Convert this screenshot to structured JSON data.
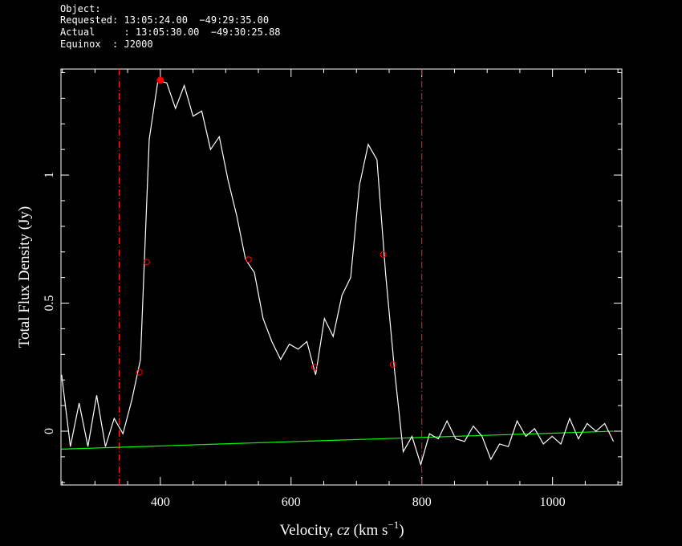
{
  "chart_data": {
    "type": "line",
    "header": [
      "Object:",
      "Requested: 13:05:24.00  −49:29:35.00",
      "Actual     : 13:05:30.00  −49:30:25.88",
      "Equinox  : J2000"
    ],
    "y_label": "Total Flux Density (Jy)",
    "x_label": [
      "Velocity, ",
      "cz",
      " (km s",
      "−1",
      ")"
    ],
    "xlim": [
      248,
      1106
    ],
    "ylim": [
      -0.21,
      1.414
    ],
    "xticks": [
      400,
      600,
      800,
      1000
    ],
    "yticks": [
      0,
      0.5,
      1
    ],
    "xminor": [
      250,
      300,
      350,
      450,
      500,
      550,
      650,
      700,
      750,
      850,
      900,
      950,
      1050,
      1100
    ],
    "yminor": [
      -0.2,
      -0.1,
      0.1,
      0.2,
      0.3,
      0.4,
      0.6,
      0.7,
      0.8,
      0.9,
      1.1,
      1.2,
      1.3,
      1.4
    ],
    "spectrum": {
      "color": "#ffffff",
      "x": [
        249,
        262.4,
        275.8,
        289.2,
        302.6,
        316,
        329.4,
        342.8,
        356.2,
        369.6,
        383,
        396.4,
        409.8,
        423.2,
        436.6,
        450,
        463.4,
        476.8,
        490.2,
        503.6,
        517,
        530.4,
        543.8,
        557.2,
        570.6,
        584,
        597.4,
        610.8,
        624.2,
        637.6,
        651,
        664.4,
        677.8,
        691.2,
        704.6,
        718,
        731.4,
        744.8,
        758.2,
        771.6,
        785,
        798.4,
        811.8,
        825.2,
        838.6,
        852,
        865.4,
        878.8,
        892.2,
        905.6,
        919,
        932.4,
        945.8,
        959.2,
        972.6,
        986,
        999.4,
        1012.8,
        1026.2,
        1039.6,
        1053,
        1066.4,
        1079.8,
        1093.2
      ],
      "values": [
        0.22,
        -0.06,
        0.11,
        -0.06,
        0.14,
        -0.06,
        0.05,
        -0.01,
        0.12,
        0.28,
        1.14,
        1.37,
        1.36,
        1.26,
        1.35,
        1.23,
        1.25,
        1.1,
        1.15,
        0.98,
        0.84,
        0.67,
        0.62,
        0.44,
        0.35,
        0.28,
        0.34,
        0.32,
        0.35,
        0.22,
        0.44,
        0.37,
        0.53,
        0.6,
        0.96,
        1.12,
        1.06,
        0.61,
        0.24,
        -0.08,
        -0.02,
        -0.13,
        -0.01,
        -0.03,
        0.04,
        -0.03,
        -0.04,
        0.02,
        -0.02,
        -0.11,
        -0.05,
        -0.06,
        0.04,
        -0.02,
        0.01,
        -0.05,
        -0.02,
        -0.05,
        0.05,
        -0.03,
        0.03,
        0,
        0.03,
        -0.04
      ]
    },
    "baseline": {
      "color": "#00ff00",
      "x": [
        249,
        1093
      ],
      "values": [
        -0.07,
        0
      ]
    },
    "window": {
      "color": "#ff2020",
      "x": [
        337,
        800
      ]
    },
    "width_points": {
      "color": "#ff0000",
      "x": [
        368,
        379,
        535,
        636,
        741,
        756
      ],
      "values": [
        0.23,
        0.66,
        0.67,
        0.25,
        0.69,
        0.26
      ]
    },
    "peak": {
      "color": "#ff0000",
      "x": 400,
      "value": 1.37
    }
  }
}
